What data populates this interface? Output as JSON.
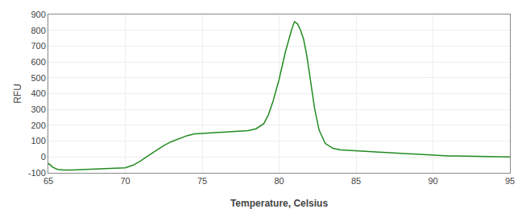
{
  "chart_data": {
    "type": "line",
    "xlabel": "Temperature, Celsius",
    "ylabel": "RFU",
    "x": [
      65.0,
      65.3,
      65.6,
      66.0,
      66.5,
      67.0,
      67.5,
      68.0,
      68.5,
      69.0,
      69.5,
      70.0,
      70.5,
      71.0,
      71.5,
      72.0,
      72.5,
      73.0,
      73.5,
      74.0,
      74.5,
      75.0,
      75.3,
      75.6,
      76.0,
      76.5,
      77.0,
      77.5,
      78.0,
      78.5,
      79.0,
      79.3,
      79.6,
      80.0,
      80.2,
      80.4,
      80.6,
      80.8,
      81.0,
      81.2,
      81.4,
      81.6,
      81.8,
      82.0,
      82.3,
      82.6,
      83.0,
      83.5,
      84.0,
      84.5,
      85.0,
      85.5,
      86.0,
      86.5,
      87.0,
      87.5,
      88.0,
      88.5,
      89.0,
      89.5,
      90.0,
      90.5,
      91.0,
      91.5,
      92.0,
      92.5,
      93.0,
      93.5,
      94.0,
      94.5,
      95.0
    ],
    "values": [
      -40,
      -65,
      -78,
      -82,
      -82,
      -80,
      -79,
      -78,
      -77,
      -75,
      -73,
      -68,
      -52,
      -25,
      8,
      42,
      72,
      97,
      117,
      134,
      146,
      150,
      151,
      153,
      155,
      158,
      160,
      162,
      167,
      178,
      210,
      265,
      350,
      490,
      580,
      660,
      730,
      800,
      855,
      840,
      800,
      740,
      640,
      510,
      310,
      170,
      85,
      55,
      45,
      42,
      40,
      37,
      34,
      31,
      28,
      25,
      22,
      19,
      16,
      13,
      11,
      9,
      7,
      6,
      5,
      4,
      3,
      2,
      2,
      1,
      0
    ],
    "color": "#228B22",
    "xlim": [
      65,
      95
    ],
    "ylim": [
      -100,
      900
    ],
    "xticks": [
      65,
      70,
      75,
      80,
      85,
      90,
      95
    ],
    "yticks": [
      -100,
      0,
      100,
      200,
      300,
      400,
      500,
      600,
      700,
      800,
      900
    ],
    "grid": true
  }
}
